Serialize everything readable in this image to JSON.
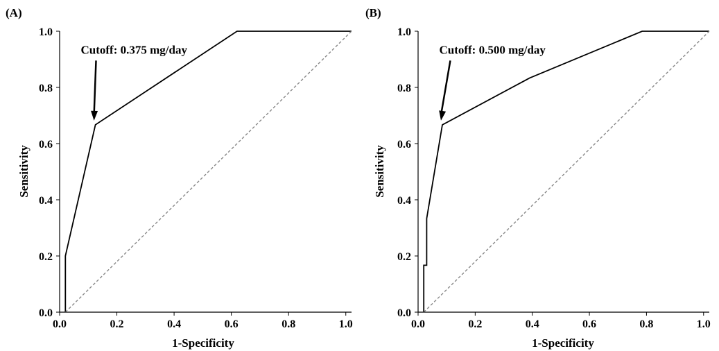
{
  "chart_data": [
    {
      "type": "line",
      "panel_label": "(A)",
      "xlabel": "1-Specificity",
      "ylabel": "Sensitivity",
      "xlim": [
        0,
        1.02
      ],
      "ylim": [
        0,
        1.0
      ],
      "x_ticks": [
        0.0,
        0.2,
        0.4,
        0.6,
        0.8,
        1.0
      ],
      "x_tick_labels": [
        "0.0",
        "0.2",
        "0.4",
        "0.6",
        "0.8",
        "1.0"
      ],
      "y_ticks": [
        0.0,
        0.2,
        0.4,
        0.6,
        0.8,
        1.0
      ],
      "y_tick_labels": [
        "0.0",
        "0.2",
        "0.4",
        "0.6",
        "0.8",
        "1.0"
      ],
      "grid": false,
      "series": [
        {
          "style": "solid",
          "color": "#000000",
          "x": [
            0.02,
            0.02,
            0.125,
            0.62,
            1.02
          ],
          "y": [
            0.0,
            0.2,
            0.667,
            1.0,
            1.0
          ]
        },
        {
          "style": "dashed",
          "color": "#888888",
          "x": [
            0.02,
            1.02
          ],
          "y": [
            0.0,
            1.0
          ]
        }
      ],
      "annotation": {
        "text": "Cutoff: 0.375 mg/day",
        "point": [
          0.125,
          0.667
        ],
        "text_at": [
          0.04,
          0.93
        ]
      }
    },
    {
      "type": "line",
      "panel_label": "(B)",
      "xlabel": "1-Specificity",
      "ylabel": "Sensitivity",
      "xlim": [
        0,
        1.02
      ],
      "ylim": [
        0,
        1.0
      ],
      "x_ticks": [
        0.0,
        0.2,
        0.4,
        0.6,
        0.8,
        1.0
      ],
      "x_tick_labels": [
        "0.0",
        "0.2",
        "0.4",
        "0.6",
        "0.8",
        "1.0"
      ],
      "y_ticks": [
        0.0,
        0.2,
        0.4,
        0.6,
        0.8,
        1.0
      ],
      "y_tick_labels": [
        "0.0",
        "0.2",
        "0.4",
        "0.6",
        "0.8",
        "1.0"
      ],
      "grid": false,
      "series": [
        {
          "style": "solid",
          "color": "#000000",
          "x": [
            0.02,
            0.02,
            0.03,
            0.03,
            0.085,
            0.39,
            0.785,
            1.02
          ],
          "y": [
            0.0,
            0.167,
            0.167,
            0.333,
            0.667,
            0.833,
            1.0,
            1.0
          ]
        },
        {
          "style": "dashed",
          "color": "#888888",
          "x": [
            0.02,
            1.02
          ],
          "y": [
            0.0,
            1.0
          ]
        }
      ],
      "annotation": {
        "text": "Cutoff: 0.500 mg/day",
        "point": [
          0.085,
          0.667
        ],
        "text_at": [
          0.04,
          0.93
        ]
      }
    }
  ]
}
